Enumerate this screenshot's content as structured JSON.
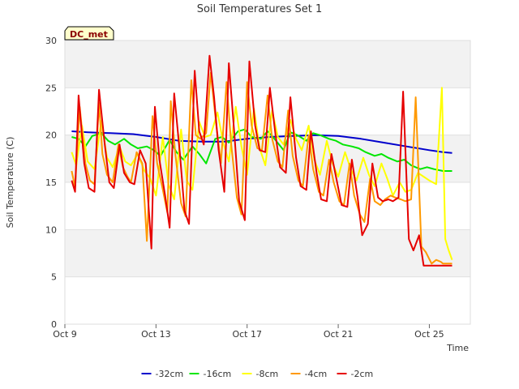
{
  "chart_data": {
    "type": "line",
    "title": "Soil Temperatures Set 1",
    "xlabel": "Time",
    "ylabel": "Soil Temperature (C)",
    "site_tag": "DC_met",
    "xlim": [
      0,
      17.8
    ],
    "ylim": [
      0,
      30
    ],
    "x_ticks": [
      {
        "label": "Oct 9",
        "x": 0
      },
      {
        "label": "Oct 13",
        "x": 4
      },
      {
        "label": "Oct 17",
        "x": 8
      },
      {
        "label": "Oct 21",
        "x": 12
      },
      {
        "label": "Oct 25",
        "x": 16
      }
    ],
    "y_ticks": [
      0,
      5,
      10,
      15,
      20,
      25,
      30
    ],
    "grid": "horizontal bands",
    "legend_position": "bottom",
    "series": [
      {
        "name": "-32cm",
        "color": "#0000cc",
        "x": [
          0.3,
          1.0,
          2.0,
          3.0,
          4.0,
          5.0,
          6.0,
          7.0,
          8.0,
          9.0,
          10.0,
          11.0,
          12.0,
          13.0,
          14.0,
          15.0,
          16.0,
          16.6,
          17.0
        ],
        "values": [
          20.4,
          20.3,
          20.2,
          20.1,
          19.8,
          19.4,
          19.3,
          19.3,
          19.6,
          19.8,
          19.9,
          20.0,
          19.9,
          19.6,
          19.2,
          18.8,
          18.4,
          18.2,
          18.1
        ]
      },
      {
        "name": "-16cm",
        "color": "#00e600",
        "x": [
          0.3,
          0.6,
          0.9,
          1.2,
          1.6,
          1.9,
          2.2,
          2.6,
          2.9,
          3.2,
          3.6,
          3.9,
          4.2,
          4.6,
          4.9,
          5.2,
          5.6,
          5.9,
          6.2,
          6.6,
          6.9,
          7.2,
          7.6,
          7.9,
          8.2,
          8.6,
          8.9,
          9.2,
          9.6,
          9.9,
          10.2,
          10.6,
          10.9,
          11.2,
          11.6,
          11.9,
          12.2,
          12.6,
          12.9,
          13.2,
          13.6,
          13.9,
          14.2,
          14.6,
          14.9,
          15.2,
          15.6,
          15.9,
          16.2,
          16.6,
          16.9,
          17.0
        ],
        "values": [
          19.8,
          19.6,
          18.8,
          19.9,
          20.2,
          19.4,
          19.0,
          19.6,
          19.0,
          18.6,
          18.8,
          18.4,
          17.8,
          19.5,
          18.2,
          17.4,
          18.8,
          18.0,
          17.0,
          19.6,
          19.8,
          19.2,
          20.4,
          20.6,
          19.8,
          19.6,
          20.4,
          19.6,
          18.4,
          20.3,
          20.0,
          19.4,
          20.2,
          20.0,
          19.6,
          19.4,
          19.0,
          18.8,
          18.6,
          18.2,
          17.8,
          18.0,
          17.6,
          17.2,
          17.4,
          16.8,
          16.4,
          16.6,
          16.4,
          16.2,
          16.2,
          16.2
        ]
      },
      {
        "name": "-8cm",
        "color": "#ffff00",
        "x": [
          0.3,
          0.5,
          0.75,
          1.0,
          1.3,
          1.6,
          1.85,
          2.1,
          2.4,
          2.65,
          2.9,
          3.2,
          3.5,
          3.75,
          4.0,
          4.3,
          4.55,
          4.8,
          5.1,
          5.35,
          5.6,
          5.9,
          6.15,
          6.4,
          6.7,
          6.95,
          7.2,
          7.5,
          7.75,
          8.0,
          8.3,
          8.55,
          8.8,
          9.1,
          9.35,
          9.6,
          9.9,
          10.15,
          10.4,
          10.7,
          10.95,
          11.2,
          11.5,
          11.75,
          12.0,
          12.3,
          12.55,
          12.8,
          13.1,
          13.35,
          13.6,
          13.9,
          14.15,
          14.4,
          14.7,
          14.95,
          15.2,
          15.5,
          15.75,
          16.0,
          16.3,
          16.55,
          16.7,
          16.85,
          17.0
        ],
        "values": [
          18.2,
          16.8,
          21.0,
          17.2,
          16.4,
          21.5,
          17.6,
          16.6,
          18.8,
          17.2,
          16.8,
          18.0,
          16.2,
          15.4,
          13.6,
          19.8,
          14.8,
          13.2,
          20.6,
          15.2,
          14.2,
          21.4,
          19.8,
          20.0,
          22.4,
          19.2,
          17.2,
          23.0,
          18.8,
          15.8,
          22.8,
          18.6,
          16.8,
          22.6,
          19.8,
          19.0,
          21.6,
          19.6,
          18.4,
          21.0,
          17.4,
          15.8,
          19.4,
          17.0,
          15.6,
          18.2,
          16.4,
          15.2,
          17.6,
          15.8,
          14.6,
          17.0,
          15.4,
          13.6,
          15.0,
          14.0,
          14.2,
          16.0,
          15.6,
          15.2,
          14.8,
          25.0,
          9.0,
          7.8,
          6.8
        ]
      },
      {
        "name": "-4cm",
        "color": "#ff9900",
        "x": [
          0.3,
          0.45,
          0.65,
          0.9,
          1.1,
          1.3,
          1.5,
          1.65,
          1.85,
          2.1,
          2.35,
          2.55,
          2.75,
          2.9,
          3.15,
          3.4,
          3.6,
          3.85,
          4.05,
          4.3,
          4.5,
          4.65,
          4.85,
          5.1,
          5.3,
          5.55,
          5.75,
          5.95,
          6.2,
          6.4,
          6.65,
          6.85,
          7.1,
          7.3,
          7.55,
          7.75,
          8.0,
          8.2,
          8.45,
          8.65,
          8.9,
          9.1,
          9.35,
          9.55,
          9.8,
          10.0,
          10.25,
          10.45,
          10.7,
          10.9,
          11.15,
          11.35,
          11.6,
          11.8,
          12.05,
          12.25,
          12.5,
          12.7,
          12.95,
          13.15,
          13.4,
          13.6,
          13.85,
          14.05,
          14.3,
          14.5,
          14.75,
          14.95,
          15.2,
          15.4,
          15.65,
          15.85,
          16.1,
          16.3,
          16.5,
          16.6,
          16.7,
          16.8,
          17.0
        ],
        "values": [
          16.2,
          14.5,
          23.0,
          17.0,
          15.2,
          14.8,
          23.4,
          18.0,
          15.8,
          15.0,
          19.0,
          16.6,
          15.6,
          15.0,
          18.2,
          17.0,
          8.8,
          22.0,
          17.0,
          14.2,
          11.8,
          23.6,
          18.0,
          12.8,
          11.4,
          25.8,
          20.0,
          19.6,
          20.2,
          26.6,
          21.0,
          17.0,
          25.6,
          19.0,
          13.4,
          11.6,
          25.6,
          21.0,
          18.6,
          18.4,
          24.2,
          19.6,
          17.2,
          16.6,
          22.6,
          17.8,
          15.2,
          14.6,
          20.0,
          16.4,
          14.0,
          13.6,
          17.4,
          15.0,
          13.0,
          12.6,
          17.0,
          13.6,
          11.6,
          10.8,
          15.4,
          13.0,
          12.6,
          13.2,
          13.6,
          13.4,
          13.2,
          13.0,
          13.2,
          24.0,
          8.2,
          7.6,
          6.4,
          6.8,
          6.6,
          6.4,
          6.4,
          6.4,
          6.4
        ]
      },
      {
        "name": "-2cm",
        "color": "#e60000",
        "x": [
          0.3,
          0.45,
          0.6,
          0.85,
          1.05,
          1.3,
          1.5,
          1.75,
          1.95,
          2.15,
          2.4,
          2.6,
          2.85,
          3.05,
          3.3,
          3.55,
          3.8,
          3.95,
          4.15,
          4.4,
          4.6,
          4.8,
          5.05,
          5.25,
          5.45,
          5.7,
          5.9,
          6.1,
          6.35,
          6.55,
          6.75,
          7.0,
          7.2,
          7.45,
          7.65,
          7.9,
          8.1,
          8.35,
          8.55,
          8.8,
          9.0,
          9.25,
          9.45,
          9.7,
          9.9,
          10.15,
          10.35,
          10.6,
          10.8,
          11.05,
          11.25,
          11.5,
          11.7,
          11.95,
          12.15,
          12.4,
          12.6,
          12.85,
          13.05,
          13.3,
          13.5,
          13.75,
          13.95,
          14.2,
          14.4,
          14.65,
          14.85,
          15.1,
          15.3,
          15.55,
          15.75,
          16.0,
          16.2,
          16.45,
          16.65,
          16.8,
          17.0
        ],
        "values": [
          15.2,
          14.0,
          24.2,
          17.0,
          14.4,
          14.0,
          24.8,
          19.0,
          15.0,
          14.4,
          19.0,
          16.0,
          15.0,
          14.8,
          18.4,
          17.0,
          8.0,
          23.0,
          17.4,
          13.6,
          10.2,
          24.4,
          18.0,
          12.0,
          10.6,
          26.8,
          20.4,
          19.0,
          28.4,
          24.0,
          18.4,
          14.0,
          27.6,
          19.8,
          13.0,
          11.0,
          27.8,
          21.0,
          18.4,
          18.2,
          25.0,
          20.0,
          16.6,
          16.0,
          24.0,
          17.6,
          14.6,
          14.2,
          20.4,
          16.0,
          13.2,
          13.0,
          18.0,
          15.0,
          12.6,
          12.4,
          17.4,
          13.4,
          9.4,
          10.6,
          17.0,
          13.4,
          13.0,
          13.2,
          13.0,
          13.4,
          24.6,
          9.0,
          7.8,
          9.4,
          6.2,
          6.2,
          6.2,
          6.2,
          6.2,
          6.2,
          6.2
        ]
      }
    ]
  }
}
